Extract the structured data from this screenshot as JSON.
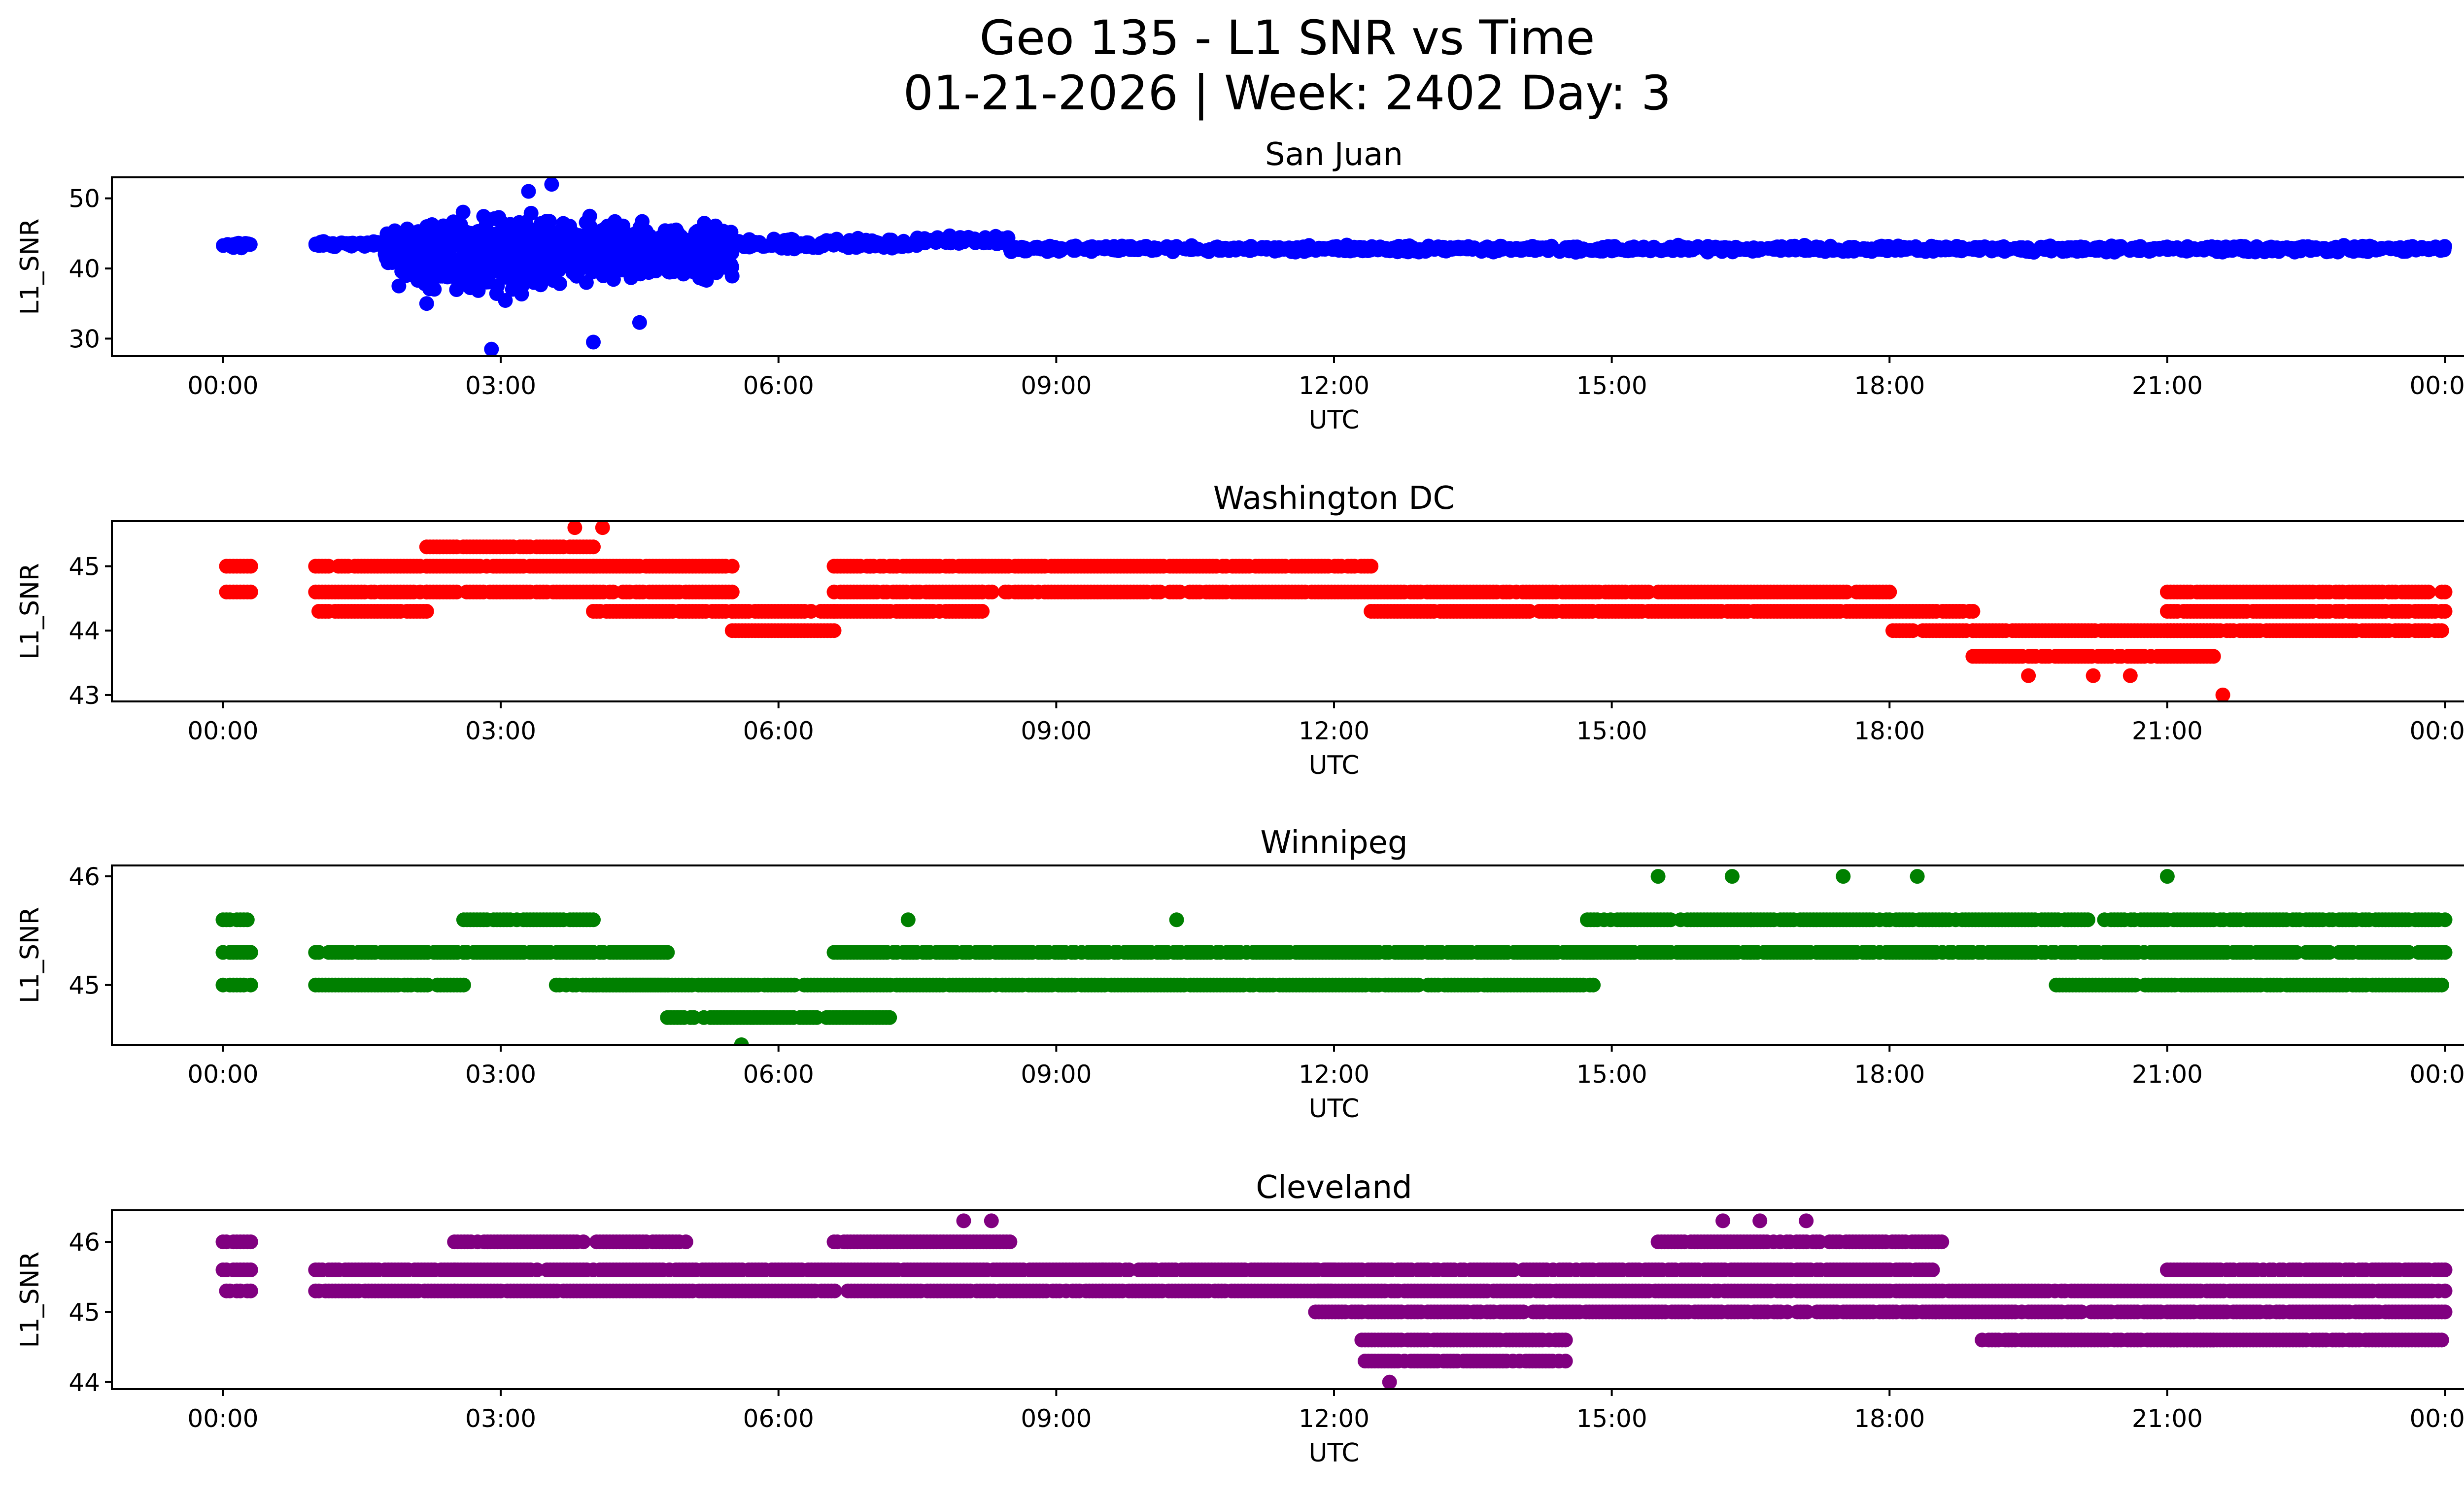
{
  "chart_data": {
    "type": "scatter",
    "title_line1": "Geo 135 - L1 SNR vs Time",
    "title_line2": "01-21-2026 | Week: 2402 Day: 3",
    "xlabel": "UTC",
    "ylabel": "L1_SNR",
    "x_unit": "hours UTC",
    "x_ticks": [
      0,
      3,
      6,
      9,
      12,
      15,
      18,
      21,
      24
    ],
    "x_tick_labels": [
      "00:00",
      "03:00",
      "06:00",
      "09:00",
      "12:00",
      "15:00",
      "18:00",
      "21:00",
      "00:00"
    ],
    "xlim": [
      -1.2,
      25.2
    ],
    "panels": [
      {
        "name": "San Juan",
        "color": "#0000ff",
        "ylim": [
          27.5,
          53.0
        ],
        "y_ticks": [
          30,
          40,
          50
        ],
        "y_tick_labels": [
          "30",
          "40",
          "50"
        ],
        "gaps": [
          [
            0.3,
            1.0
          ]
        ],
        "segments": [
          {
            "from": 0.0,
            "to": 0.3,
            "center": 43.3,
            "spread": 0.6
          },
          {
            "from": 1.0,
            "to": 1.75,
            "center": 43.5,
            "spread": 0.5
          },
          {
            "from": 1.75,
            "to": 2.1,
            "center": 42.5,
            "spread": 5
          },
          {
            "from": 2.1,
            "to": 3.5,
            "center": 42,
            "spread": 7
          },
          {
            "from": 3.5,
            "to": 5.5,
            "center": 42.5,
            "spread": 5.5
          },
          {
            "from": 5.5,
            "to": 7.5,
            "center": 43.5,
            "spread": 1.0
          },
          {
            "from": 7.5,
            "to": 8.5,
            "center": 44,
            "spread": 0.8
          },
          {
            "from": 8.5,
            "to": 18,
            "center": 42.8,
            "spread": 0.6
          },
          {
            "from": 18,
            "to": 24,
            "center": 42.8,
            "spread": 0.6
          }
        ],
        "highlights": [
          [
            3.55,
            52
          ],
          [
            2.9,
            28.5
          ],
          [
            3.3,
            51
          ],
          [
            4.0,
            29.5
          ],
          [
            4.5,
            32.3
          ],
          [
            2.2,
            35
          ],
          [
            1.9,
            37.5
          ]
        ]
      },
      {
        "name": "Washington DC",
        "color": "#ff0000",
        "ylim": [
          42.9,
          45.7
        ],
        "y_ticks": [
          43,
          44,
          45
        ],
        "y_tick_labels": [
          "43",
          "44",
          "45"
        ],
        "gaps": [
          [
            0.3,
            1.0
          ]
        ],
        "segments": [
          {
            "from": 0.0,
            "to": 0.3,
            "levels": [
              45.0,
              44.6
            ]
          },
          {
            "from": 1.0,
            "to": 2.2,
            "levels": [
              45.0,
              44.6,
              44.3
            ]
          },
          {
            "from": 2.2,
            "to": 4.0,
            "levels": [
              45.3,
              45.0,
              44.6
            ]
          },
          {
            "from": 4.0,
            "to": 5.5,
            "levels": [
              45.0,
              44.6,
              44.3
            ]
          },
          {
            "from": 5.5,
            "to": 6.6,
            "levels": [
              44.3,
              44.0
            ]
          },
          {
            "from": 6.6,
            "to": 8.2,
            "levels": [
              45.0,
              44.6,
              44.3
            ]
          },
          {
            "from": 8.2,
            "to": 12.4,
            "levels": [
              45.0,
              44.6
            ]
          },
          {
            "from": 12.4,
            "to": 18.0,
            "levels": [
              44.6,
              44.3
            ]
          },
          {
            "from": 18.0,
            "to": 18.9,
            "levels": [
              44.3,
              44.0
            ]
          },
          {
            "from": 18.9,
            "to": 21.5,
            "levels": [
              44.0,
              43.6
            ]
          },
          {
            "from": 21.0,
            "to": 24.0,
            "levels": [
              44.6,
              44.3,
              44.0
            ]
          }
        ],
        "highlights": [
          [
            3.8,
            45.6
          ],
          [
            4.1,
            45.6
          ],
          [
            21.6,
            43.0
          ],
          [
            19.5,
            43.3
          ],
          [
            20.2,
            43.3
          ],
          [
            20.6,
            43.3
          ]
        ]
      },
      {
        "name": "Winnipeg",
        "color": "#008000",
        "ylim": [
          44.45,
          46.1
        ],
        "y_ticks": [
          45,
          46
        ],
        "y_tick_labels": [
          "45",
          "46"
        ],
        "gaps": [
          [
            0.3,
            1.0
          ]
        ],
        "segments": [
          {
            "from": 0.0,
            "to": 0.3,
            "levels": [
              45.6,
              45.3,
              45.0
            ]
          },
          {
            "from": 1.0,
            "to": 2.6,
            "levels": [
              45.3,
              45.0
            ]
          },
          {
            "from": 2.6,
            "to": 4.0,
            "levels": [
              45.6,
              45.3
            ]
          },
          {
            "from": 4.0,
            "to": 4.8,
            "levels": [
              45.3,
              45.0
            ]
          },
          {
            "from": 3.6,
            "to": 6.6,
            "levels": [
              45.0
            ]
          },
          {
            "from": 4.8,
            "to": 7.2,
            "levels": [
              44.7
            ]
          },
          {
            "from": 6.6,
            "to": 14.8,
            "levels": [
              45.3,
              45.0
            ]
          },
          {
            "from": 14.7,
            "to": 16.5,
            "levels": [
              45.6,
              45.3
            ]
          },
          {
            "from": 16.5,
            "to": 24.0,
            "levels": [
              45.6,
              45.3
            ]
          },
          {
            "from": 19.8,
            "to": 24.0,
            "levels": [
              45.0
            ]
          }
        ],
        "highlights": [
          [
            5.6,
            44.45
          ],
          [
            15.5,
            46.0
          ],
          [
            16.3,
            46.0
          ],
          [
            17.5,
            46.0
          ],
          [
            18.3,
            46.0
          ],
          [
            21.0,
            46.0
          ],
          [
            7.4,
            45.6
          ],
          [
            10.3,
            45.6
          ]
        ]
      },
      {
        "name": "Cleveland",
        "color": "#800080",
        "ylim": [
          43.9,
          46.45
        ],
        "y_ticks": [
          44,
          45,
          46
        ],
        "y_tick_labels": [
          "44",
          "45",
          "46"
        ],
        "gaps": [
          [
            0.3,
            1.0
          ]
        ],
        "segments": [
          {
            "from": 0.0,
            "to": 0.3,
            "levels": [
              46.0,
              45.6,
              45.3
            ]
          },
          {
            "from": 1.0,
            "to": 2.5,
            "levels": [
              45.6,
              45.3
            ]
          },
          {
            "from": 2.5,
            "to": 5.0,
            "levels": [
              46.0,
              45.6,
              45.3
            ]
          },
          {
            "from": 5.0,
            "to": 9.5,
            "levels": [
              45.6,
              45.3
            ]
          },
          {
            "from": 6.6,
            "to": 8.5,
            "levels": [
              46.0
            ]
          },
          {
            "from": 9.5,
            "to": 12.0,
            "levels": [
              45.6,
              45.3
            ]
          },
          {
            "from": 11.8,
            "to": 18.5,
            "levels": [
              45.6,
              45.3,
              45.0
            ]
          },
          {
            "from": 12.3,
            "to": 14.5,
            "levels": [
              44.6,
              44.3
            ]
          },
          {
            "from": 15.5,
            "to": 18.6,
            "levels": [
              46.0
            ]
          },
          {
            "from": 18.5,
            "to": 24.0,
            "levels": [
              45.3,
              45.0
            ]
          },
          {
            "from": 19.0,
            "to": 21.5,
            "levels": [
              44.6
            ]
          },
          {
            "from": 21.0,
            "to": 24.0,
            "levels": [
              45.6,
              44.6
            ]
          }
        ],
        "highlights": [
          [
            8.0,
            46.3
          ],
          [
            8.3,
            46.3
          ],
          [
            16.2,
            46.3
          ],
          [
            17.1,
            46.3
          ],
          [
            12.6,
            44.0
          ],
          [
            16.6,
            46.3
          ]
        ]
      }
    ]
  }
}
